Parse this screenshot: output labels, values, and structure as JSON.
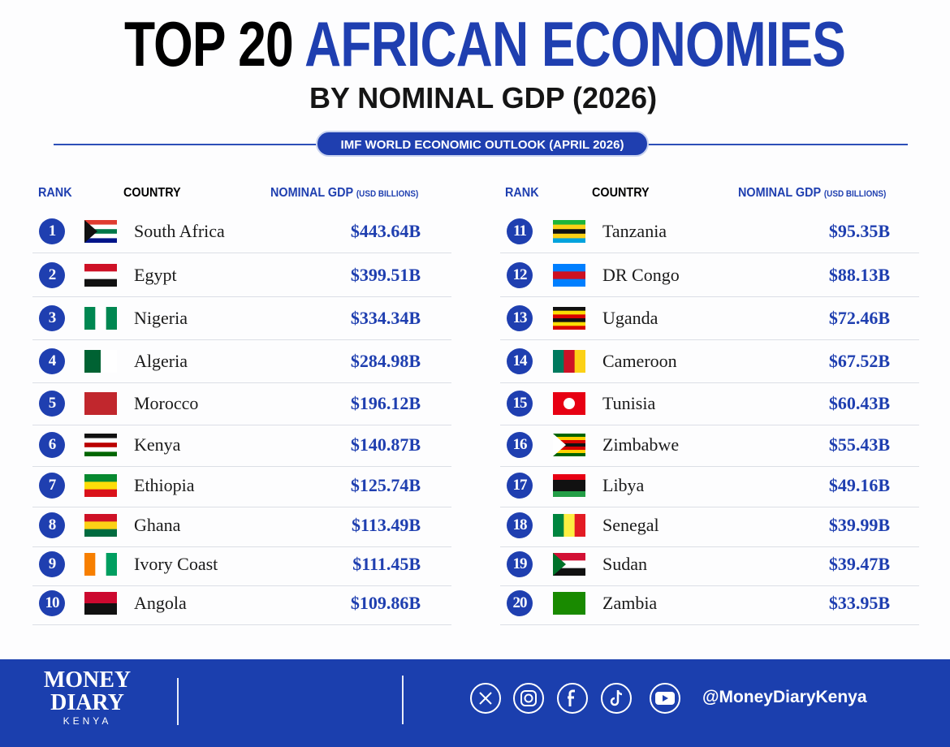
{
  "header": {
    "title_lead": "TOP 20",
    "title_accent": "AFRICAN ECONOMIES",
    "subtitle": "BY NOMINAL GDP (2026)",
    "source": "IMF WORLD ECONOMIC OUTLOOK (APRIL 2026)"
  },
  "columns": {
    "rank": "RANK",
    "country": "COUNTRY",
    "gdp": "NOMINAL GDP",
    "gdp_unit": "(USD BILLIONS)"
  },
  "tables": [
    {
      "rows": [
        {
          "rank": 1,
          "country": "South Africa",
          "gdp": "$443.64B"
        },
        {
          "rank": 2,
          "country": "Egypt",
          "gdp": "$399.51B"
        },
        {
          "rank": 3,
          "country": "Nigeria",
          "gdp": "$334.34B"
        },
        {
          "rank": 4,
          "country": "Algeria",
          "gdp": "$284.98B"
        },
        {
          "rank": 5,
          "country": "Morocco",
          "gdp": "$196.12B"
        },
        {
          "rank": 6,
          "country": "Kenya",
          "gdp": "$140.87B"
        },
        {
          "rank": 7,
          "country": "Ethiopia",
          "gdp": "$125.74B"
        },
        {
          "rank": 8,
          "country": "Ghana",
          "gdp": "$113.49B"
        },
        {
          "rank": 9,
          "country": "Ivory Coast",
          "gdp": "$111.45B"
        },
        {
          "rank": 10,
          "country": "Angola",
          "gdp": "$109.86B"
        }
      ]
    },
    {
      "rows": [
        {
          "rank": 11,
          "country": "Tanzania",
          "gdp": "$95.35B"
        },
        {
          "rank": 12,
          "country": "DR Congo",
          "gdp": "$88.13B"
        },
        {
          "rank": 13,
          "country": "Uganda",
          "gdp": "$72.46B"
        },
        {
          "rank": 14,
          "country": "Cameroon",
          "gdp": "$67.52B"
        },
        {
          "rank": 15,
          "country": "Tunisia",
          "gdp": "$60.43B"
        },
        {
          "rank": 16,
          "country": "Zimbabwe",
          "gdp": "$55.43B"
        },
        {
          "rank": 17,
          "country": "Libya",
          "gdp": "$49.16B"
        },
        {
          "rank": 18,
          "country": "Senegal",
          "gdp": "$39.99B"
        },
        {
          "rank": 19,
          "country": "Sudan",
          "gdp": "$39.47B"
        },
        {
          "rank": 20,
          "country": "Zambia",
          "gdp": "$33.95B"
        }
      ]
    }
  ],
  "footer": {
    "logo_line1": "MONEY",
    "logo_line2": "DIARY",
    "logo_line3": "KENYA",
    "handle": "@MoneyDiaryKenya"
  }
}
